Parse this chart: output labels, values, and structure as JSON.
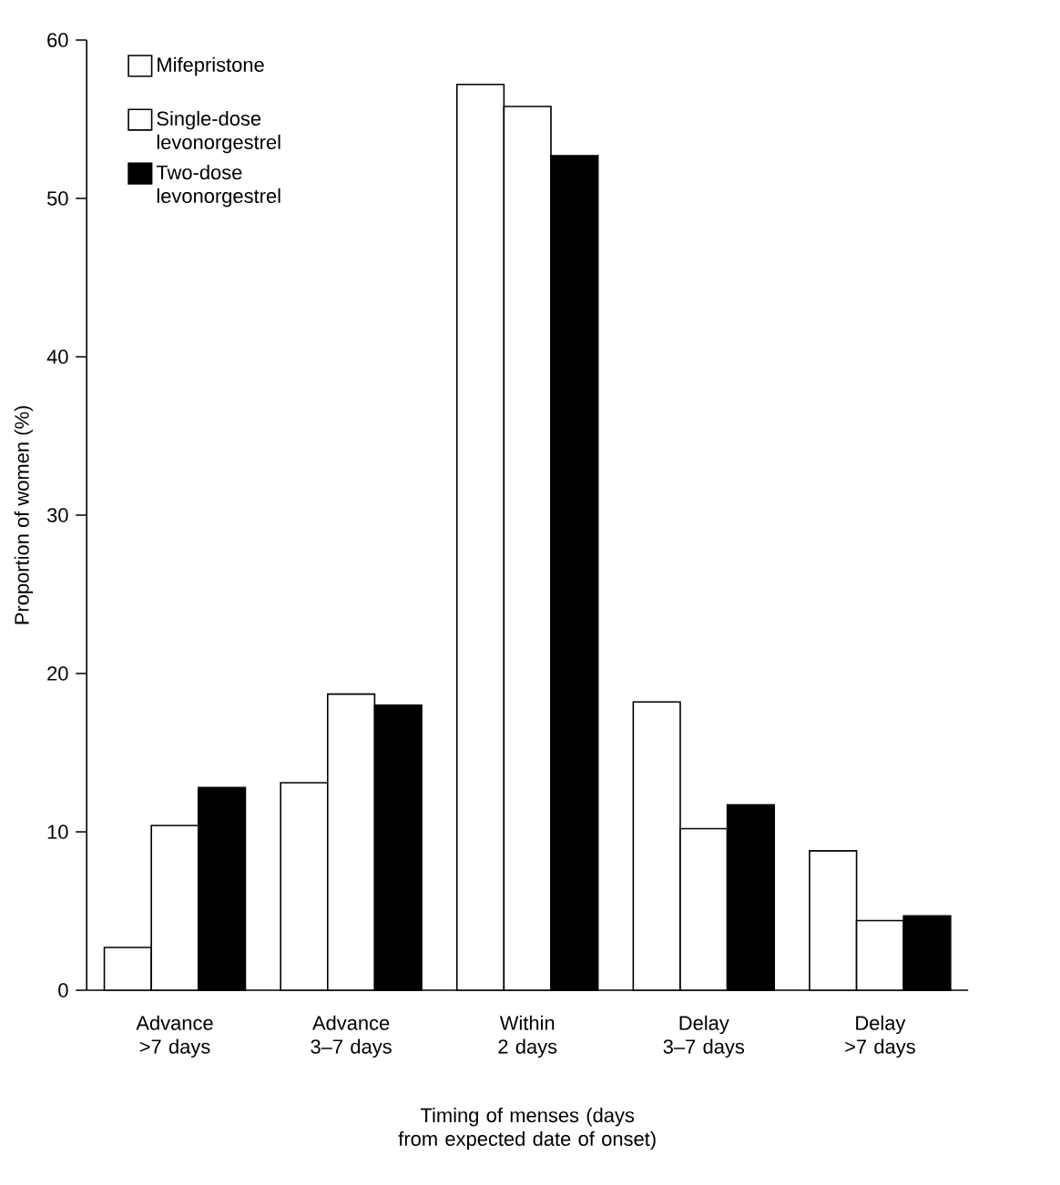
{
  "chart_data": {
    "type": "bar",
    "xlabel": "Timing of menses (days from expected date of onset)",
    "ylabel": "Proportion of women (%)",
    "categories": [
      "Advance >7 days",
      "Advance 3–7 days",
      "Within 2 days",
      "Delay 3–7 days",
      "Delay >7 days"
    ],
    "series": [
      {
        "name": "Mifepristone",
        "color": "#ffffff",
        "values": [
          2.7,
          13.1,
          57.2,
          18.2,
          8.8
        ]
      },
      {
        "name": "Single-dose levonorgestrel",
        "color": "#ffffff",
        "values": [
          10.4,
          18.7,
          55.8,
          10.2,
          4.4
        ]
      },
      {
        "name": "Two-dose levonorgestrel",
        "color": "#000000",
        "values": [
          12.8,
          18.0,
          52.7,
          11.7,
          4.7
        ]
      }
    ],
    "ylim": [
      0,
      60
    ],
    "yticks": [
      0,
      10,
      20,
      30,
      40,
      50,
      60
    ],
    "grid": false,
    "legend": "top left"
  }
}
